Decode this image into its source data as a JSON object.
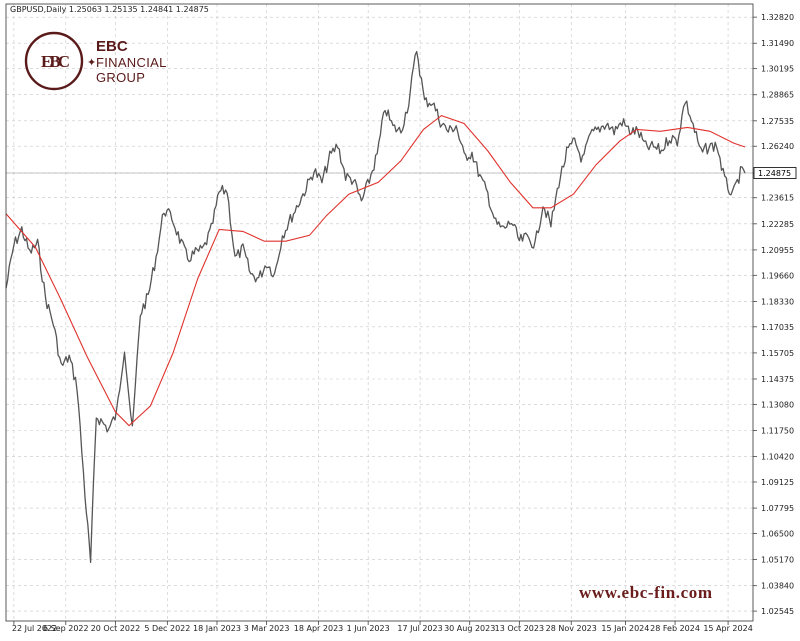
{
  "header": {
    "symbol_info": "GBPUSD,Daily  1.25063 1.25135 1.24841 1.24875"
  },
  "brand": {
    "logo_initials": "EBC",
    "line1": "EBC",
    "line2": "FINANCIAL",
    "line3": "GROUP",
    "url": "www.ebc-fin.com",
    "color": "#5a1a1a"
  },
  "chart_data": {
    "type": "line",
    "symbol": "GBPUSD",
    "timeframe": "Daily",
    "last_price_label": "1.24875",
    "y_ticks": [
      "1.32820",
      "1.31490",
      "1.30195",
      "1.28865",
      "1.27535",
      "1.26240",
      "1.24875",
      "1.23615",
      "1.22285",
      "1.20955",
      "1.19660",
      "1.18330",
      "1.17035",
      "1.15705",
      "1.14375",
      "1.13080",
      "1.11750",
      "1.10420",
      "1.09125",
      "1.07795",
      "1.06500",
      "1.05170",
      "1.03840",
      "1.02545"
    ],
    "ylim": [
      1.0204,
      1.3349
    ],
    "x_ticks": [
      "22 Jul 2022",
      "6 Sep 2022",
      "20 Oct 2022",
      "5 Dec 2022",
      "18 Jan 2023",
      "3 Mar 2023",
      "18 Apr 2023",
      "1 Jun 2023",
      "17 Jul 2023",
      "30 Aug 2023",
      "13 Oct 2023",
      "28 Nov 2023",
      "15 Jan 2024",
      "28 Feb 2024",
      "15 Apr 2024"
    ],
    "series": [
      {
        "kind": "price",
        "color": "#555555",
        "points": [
          [
            "2022-07-15",
            1.19
          ],
          [
            "2022-07-22",
            1.212
          ],
          [
            "2022-07-29",
            1.22
          ],
          [
            "2022-08-05",
            1.208
          ],
          [
            "2022-08-12",
            1.213
          ],
          [
            "2022-08-19",
            1.185
          ],
          [
            "2022-08-26",
            1.172
          ],
          [
            "2022-09-02",
            1.15
          ],
          [
            "2022-09-09",
            1.155
          ],
          [
            "2022-09-16",
            1.14
          ],
          [
            "2022-09-23",
            1.085
          ],
          [
            "2022-09-28",
            1.05
          ],
          [
            "2022-10-03",
            1.125
          ],
          [
            "2022-10-14",
            1.118
          ],
          [
            "2022-10-21",
            1.126
          ],
          [
            "2022-10-28",
            1.16
          ],
          [
            "2022-11-04",
            1.117
          ],
          [
            "2022-11-11",
            1.177
          ],
          [
            "2022-11-18",
            1.186
          ],
          [
            "2022-11-25",
            1.206
          ],
          [
            "2022-12-02",
            1.23
          ],
          [
            "2022-12-09",
            1.226
          ],
          [
            "2022-12-16",
            1.215
          ],
          [
            "2022-12-23",
            1.205
          ],
          [
            "2022-12-30",
            1.208
          ],
          [
            "2023-01-06",
            1.21
          ],
          [
            "2023-01-13",
            1.22
          ],
          [
            "2023-01-20",
            1.239
          ],
          [
            "2023-01-27",
            1.24
          ],
          [
            "2023-02-03",
            1.205
          ],
          [
            "2023-02-10",
            1.21
          ],
          [
            "2023-02-17",
            1.197
          ],
          [
            "2023-02-24",
            1.195
          ],
          [
            "2023-03-03",
            1.203
          ],
          [
            "2023-03-10",
            1.197
          ],
          [
            "2023-03-17",
            1.217
          ],
          [
            "2023-03-24",
            1.225
          ],
          [
            "2023-03-31",
            1.233
          ],
          [
            "2023-04-07",
            1.241
          ],
          [
            "2023-04-14",
            1.25
          ],
          [
            "2023-04-21",
            1.244
          ],
          [
            "2023-04-28",
            1.257
          ],
          [
            "2023-05-05",
            1.263
          ],
          [
            "2023-05-12",
            1.247
          ],
          [
            "2023-05-19",
            1.245
          ],
          [
            "2023-05-26",
            1.234
          ],
          [
            "2023-06-02",
            1.245
          ],
          [
            "2023-06-09",
            1.258
          ],
          [
            "2023-06-16",
            1.282
          ],
          [
            "2023-06-23",
            1.272
          ],
          [
            "2023-06-30",
            1.27
          ],
          [
            "2023-07-07",
            1.285
          ],
          [
            "2023-07-14",
            1.312
          ],
          [
            "2023-07-21",
            1.285
          ],
          [
            "2023-07-28",
            1.285
          ],
          [
            "2023-08-04",
            1.275
          ],
          [
            "2023-08-11",
            1.27
          ],
          [
            "2023-08-18",
            1.273
          ],
          [
            "2023-08-25",
            1.257
          ],
          [
            "2023-09-01",
            1.259
          ],
          [
            "2023-09-08",
            1.247
          ],
          [
            "2023-09-15",
            1.238
          ],
          [
            "2023-09-22",
            1.223
          ],
          [
            "2023-09-29",
            1.22
          ],
          [
            "2023-10-06",
            1.224
          ],
          [
            "2023-10-13",
            1.214
          ],
          [
            "2023-10-20",
            1.216
          ],
          [
            "2023-10-27",
            1.212
          ],
          [
            "2023-11-03",
            1.233
          ],
          [
            "2023-11-10",
            1.222
          ],
          [
            "2023-11-17",
            1.244
          ],
          [
            "2023-11-24",
            1.259
          ],
          [
            "2023-12-01",
            1.265
          ],
          [
            "2023-12-08",
            1.255
          ],
          [
            "2023-12-15",
            1.268
          ],
          [
            "2023-12-22",
            1.271
          ],
          [
            "2023-12-29",
            1.274
          ],
          [
            "2024-01-05",
            1.27
          ],
          [
            "2024-01-12",
            1.275
          ],
          [
            "2024-01-19",
            1.27
          ],
          [
            "2024-01-26",
            1.27
          ],
          [
            "2024-02-02",
            1.262
          ],
          [
            "2024-02-09",
            1.262
          ],
          [
            "2024-02-16",
            1.26
          ],
          [
            "2024-02-23",
            1.267
          ],
          [
            "2024-03-01",
            1.265
          ],
          [
            "2024-03-08",
            1.286
          ],
          [
            "2024-03-15",
            1.273
          ],
          [
            "2024-03-22",
            1.259
          ],
          [
            "2024-03-29",
            1.262
          ],
          [
            "2024-04-05",
            1.263
          ],
          [
            "2024-04-12",
            1.245
          ],
          [
            "2024-04-19",
            1.237
          ],
          [
            "2024-04-26",
            1.249
          ],
          [
            "2024-04-30",
            1.24875
          ]
        ]
      },
      {
        "kind": "moving-average",
        "color": "#e0332e",
        "points": [
          [
            "2022-07-15",
            1.228
          ],
          [
            "2022-08-10",
            1.211
          ],
          [
            "2022-09-01",
            1.185
          ],
          [
            "2022-09-25",
            1.155
          ],
          [
            "2022-10-20",
            1.127
          ],
          [
            "2022-11-01",
            1.12
          ],
          [
            "2022-11-20",
            1.13
          ],
          [
            "2022-12-10",
            1.157
          ],
          [
            "2023-01-01",
            1.195
          ],
          [
            "2023-01-20",
            1.22
          ],
          [
            "2023-02-10",
            1.219
          ],
          [
            "2023-03-01",
            1.214
          ],
          [
            "2023-03-20",
            1.214
          ],
          [
            "2023-04-10",
            1.217
          ],
          [
            "2023-04-25",
            1.227
          ],
          [
            "2023-05-15",
            1.238
          ],
          [
            "2023-06-10",
            1.244
          ],
          [
            "2023-06-30",
            1.255
          ],
          [
            "2023-07-20",
            1.271
          ],
          [
            "2023-08-05",
            1.278
          ],
          [
            "2023-08-25",
            1.274
          ],
          [
            "2023-09-15",
            1.26
          ],
          [
            "2023-10-05",
            1.244
          ],
          [
            "2023-10-25",
            1.231
          ],
          [
            "2023-11-10",
            1.231
          ],
          [
            "2023-11-30",
            1.238
          ],
          [
            "2023-12-20",
            1.253
          ],
          [
            "2024-01-10",
            1.265
          ],
          [
            "2024-01-25",
            1.271
          ],
          [
            "2024-02-15",
            1.27
          ],
          [
            "2024-03-10",
            1.272
          ],
          [
            "2024-03-30",
            1.27
          ],
          [
            "2024-04-20",
            1.264
          ],
          [
            "2024-04-30",
            1.262
          ]
        ]
      }
    ],
    "grid": true
  }
}
